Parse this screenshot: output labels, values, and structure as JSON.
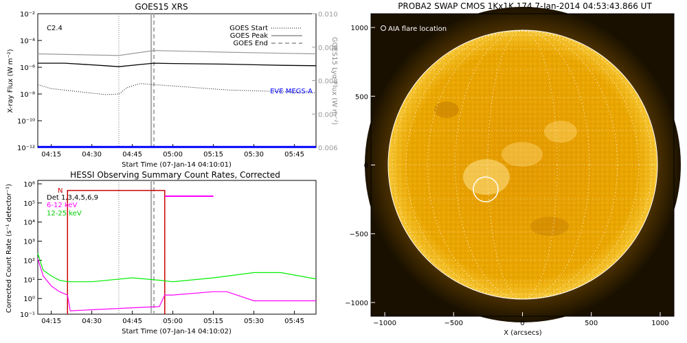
{
  "goes": {
    "title": "GOES15 XRS",
    "flare_class": "C2.4",
    "ylabel": "X-ray Flux (W m⁻²)",
    "y2label": "GOES15 Lyα Flux (W m⁻²)",
    "xlabel": "Start Time (07-Jan-14 04:10:01)",
    "legend": [
      "GOES Start",
      "GOES Peak",
      "GOES End"
    ],
    "eve_label": "EVE MEGS-A",
    "x_ticks": [
      "04:15",
      "04:30",
      "04:45",
      "05:00",
      "05:15",
      "05:30",
      "05:45"
    ],
    "y_ticks": [
      "10⁻²",
      "10⁻⁴",
      "10⁻⁶",
      "10⁻⁸",
      "10⁻¹⁰",
      "10⁻¹²"
    ],
    "y2_ticks": [
      "0.010",
      "0.009",
      "0.008",
      "0.007",
      "0.006"
    ],
    "colors": {
      "long": "#000000",
      "short": "#000000",
      "lya": "#999999",
      "eve": "#0000ff",
      "vlines": "#aaaaaa"
    }
  },
  "hessi": {
    "title": "HESSI Observing Summary Count Rates, Corrected",
    "ylabel": "Corrected Count Rate (s⁻¹ detector⁻¹)",
    "xlabel": "Start Time (07-Jan-14 04:10:02)",
    "det_label": "Det 1,3,4,5,6,9",
    "legend": [
      "6-12 keV",
      "12-25 keV"
    ],
    "flag": "N",
    "x_ticks": [
      "04:15",
      "04:30",
      "04:45",
      "05:00",
      "05:15",
      "05:30",
      "05:45"
    ],
    "y_ticks": [
      "10⁶",
      "10⁵",
      "10⁴",
      "10³",
      "10²",
      "10¹",
      "10⁰",
      "10⁻¹"
    ],
    "colors": {
      "low": "#ff00ff",
      "high": "#00ff00",
      "flag": "#cc0000"
    }
  },
  "swap": {
    "title": "PROBA2 SWAP CMOS 1Kx1K 174   7-Jan-2014 04:53:43.866 UT",
    "legend": "AIA flare location",
    "xlabel": "X (arcsecs)",
    "x_ticks": [
      "−1000",
      "−500",
      "0",
      "500",
      "1000"
    ],
    "y_ticks": [
      "1000",
      "500",
      "0",
      "−500",
      "−1000"
    ],
    "colors": {
      "disk": "#e8a200",
      "corona": "#3a2500",
      "background": "#1a1000"
    }
  },
  "chart_data": [
    {
      "type": "line",
      "title": "GOES15 XRS",
      "xlabel": "Start Time (07-Jan-14 04:10:01)",
      "ylabel": "X-ray Flux (W m⁻²)",
      "y_scale": "log",
      "ylim": [
        1e-12,
        0.01
      ],
      "y2lim": [
        0.006,
        0.01
      ],
      "x_range": [
        "04:10",
        "05:53"
      ],
      "series": [
        {
          "name": "",
          "axis": "left",
          "x": [
            "04:10",
            "04:20",
            "04:35",
            "04:40",
            "04:48",
            "04:53",
            "05:00",
            "05:20",
            "05:40",
            "05:53"
          ],
          "values": [
            2e-06,
            2e-06,
            1.3e-06,
            1.1e-06,
            1.6e-06,
            2e-06,
            1.9e-06,
            1.7e-06,
            1.4e-06,
            1.3e-06
          ]
        },
        {
          "name": "",
          "axis": "left",
          "x": [
            "04:10",
            "04:15",
            "04:25",
            "04:35",
            "04:40",
            "04:43",
            "04:48",
            "04:53",
            "05:00",
            "05:20",
            "05:40",
            "05:53"
          ],
          "values": [
            5e-08,
            2.5e-08,
            1.5e-08,
            9e-09,
            1e-08,
            3e-08,
            6e-08,
            5e-08,
            4e-08,
            2e-08,
            1.5e-08,
            1.2e-08
          ]
        },
        {
          "name": "",
          "axis": "right",
          "x": [
            "04:10",
            "04:40",
            "04:53",
            "05:20",
            "05:53"
          ],
          "values": [
            0.0088,
            0.00875,
            0.0089,
            0.00885,
            0.0088
          ]
        },
        {
          "name": "EVE MEGS-A",
          "axis": "left",
          "x": [
            "04:10",
            "05:53"
          ],
          "values": [
            1.1e-12,
            1.1e-12
          ]
        }
      ],
      "vlines": [
        {
          "name": "GOES Start",
          "x": "04:40"
        },
        {
          "name": "GOES Peak",
          "x": "04:52"
        },
        {
          "name": "GOES End",
          "x": "04:53"
        }
      ],
      "annotations": [
        "C2.4"
      ]
    },
    {
      "type": "line",
      "title": "HESSI Observing Summary Count Rates, Corrected",
      "xlabel": "Start Time (07-Jan-14 04:10:02)",
      "ylabel": "Corrected Count Rate (s⁻¹ detector⁻¹)",
      "y_scale": "log",
      "ylim": [
        0.1,
        1000000.0
      ],
      "x_range": [
        "04:10",
        "05:53"
      ],
      "series": [
        {
          "name": "6-12 keV",
          "x": [
            "04:10",
            "04:12",
            "04:15",
            "04:18",
            "04:21",
            "04:22",
            "04:40",
            "04:55",
            "04:57",
            "05:00",
            "05:15",
            "05:20",
            "05:30",
            "05:40",
            "05:53"
          ],
          "values": [
            80,
            10,
            3,
            1.5,
            1,
            0.15,
            0.2,
            0.25,
            1,
            1,
            1.5,
            1.5,
            0.5,
            0.5,
            0.5
          ]
        },
        {
          "name": "12-25 keV",
          "x": [
            "04:10",
            "04:12",
            "04:15",
            "04:18",
            "04:21",
            "04:30",
            "04:45",
            "04:55",
            "05:00",
            "05:15",
            "05:30",
            "05:40",
            "05:53"
          ],
          "values": [
            150,
            20,
            10,
            6,
            5,
            5,
            8,
            6,
            5,
            8,
            15,
            15,
            7
          ]
        },
        {
          "name": "6-12 keV (attenuated)",
          "x": [
            "04:57",
            "05:15"
          ],
          "values": [
            150000,
            150000
          ]
        }
      ],
      "vlines": [
        {
          "name": "GOES Start",
          "x": "04:40"
        },
        {
          "name": "GOES Peak",
          "x": "04:52"
        },
        {
          "name": "GOES End",
          "x": "04:53"
        }
      ],
      "annotations": [
        "Det 1,3,4,5,6,9",
        "N"
      ]
    },
    {
      "type": "heatmap",
      "title": "PROBA2 SWAP CMOS 1Kx1K 174   7-Jan-2014 04:53:43.866 UT",
      "xlabel": "X (arcsecs)",
      "xlim": [
        -1100,
        1100
      ],
      "ylim": [
        -1100,
        1100
      ],
      "solar_radius": 975,
      "annotations": [
        {
          "name": "AIA flare location",
          "x": -250,
          "y": -180
        }
      ]
    }
  ]
}
